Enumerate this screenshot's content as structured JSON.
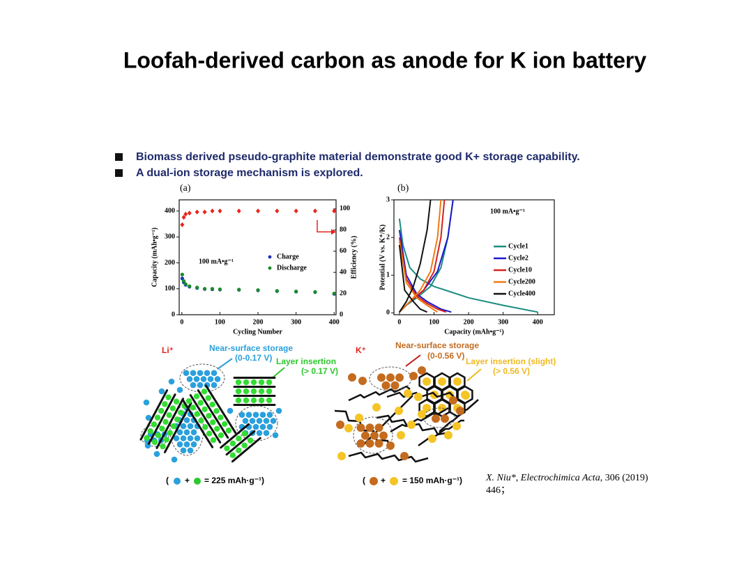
{
  "title": "Loofah-derived carbon as anode for K ion battery",
  "bullets": [
    "Biomass derived pseudo-graphite material demonstrate good K+ storage capability.",
    "A dual-ion storage mechanism is explored."
  ],
  "figure_a": {
    "type": "scatter",
    "panel": "(a)",
    "xlabel": "Cycling Number",
    "ylabel": "Capacity (mAh•g⁻¹)",
    "y2label": "Efficiency (%)",
    "annotation": "100 mA•g⁻¹",
    "xlim": [
      -7,
      405
    ],
    "xticks": [
      0,
      100,
      200,
      300,
      400
    ],
    "ylim": [
      0,
      443
    ],
    "yticks": [
      0,
      100,
      200,
      300,
      400
    ],
    "y2lim": [
      0,
      108.5
    ],
    "y2ticks": [
      0,
      20,
      40,
      60,
      80,
      100
    ],
    "series": [
      {
        "name": "Charge",
        "color": "#1f2fbf",
        "marker": "circle",
        "x": [
          1,
          5,
          10,
          20,
          40,
          60,
          80,
          100,
          150,
          200,
          250,
          300,
          350,
          400
        ],
        "values": [
          140,
          125,
          115,
          108,
          103,
          99,
          98,
          97,
          96,
          94,
          91,
          89,
          87,
          80
        ]
      },
      {
        "name": "Discharge",
        "color": "#1a8a2a",
        "marker": "circle",
        "x": [
          1,
          5,
          10,
          20,
          40,
          60,
          80,
          100,
          150,
          200,
          250,
          300,
          350,
          400
        ],
        "values": [
          155,
          130,
          118,
          110,
          105,
          100,
          100,
          98,
          97,
          95,
          92,
          90,
          88,
          82
        ]
      },
      {
        "color": "#e8231c",
        "marker": "diamond",
        "axis": "y2",
        "x": [
          1,
          5,
          10,
          20,
          40,
          60,
          80,
          100,
          150,
          200,
          250,
          300,
          350,
          400
        ],
        "values": [
          85,
          92,
          95,
          96,
          97,
          97,
          98,
          98,
          98,
          98,
          98,
          98,
          98,
          98
        ]
      }
    ]
  },
  "figure_b": {
    "type": "line",
    "panel": "(b)",
    "xlabel": "Capacity (mAh•g⁻¹)",
    "ylabel": "Potential (V vs. K⁺/K)",
    "annotation": "100 mA•g⁻¹",
    "xlim": [
      -16,
      448
    ],
    "xticks": [
      0,
      100,
      200,
      300,
      400
    ],
    "ylim": [
      -0.05,
      3
    ],
    "yticks": [
      0,
      1,
      2,
      3
    ],
    "series": [
      {
        "name": "Cycle1",
        "color": "#1a8c80",
        "x": [
          0,
          10,
          30,
          60,
          100,
          150,
          200,
          300,
          400,
          null,
          0,
          20,
          50,
          90,
          120,
          140,
          155
        ],
        "values": [
          2.5,
          1.8,
          1.2,
          0.9,
          0.7,
          0.55,
          0.4,
          0.2,
          0.02,
          null,
          0.02,
          0.2,
          0.4,
          0.7,
          1.2,
          2.0,
          3.0
        ]
      },
      {
        "name": "Cycle2",
        "color": "#1a1acc",
        "x": [
          0,
          20,
          50,
          80,
          120,
          150,
          null,
          0,
          30,
          70,
          110,
          140,
          155
        ],
        "values": [
          2.2,
          1.0,
          0.5,
          0.3,
          0.1,
          0.02,
          null,
          0.02,
          0.3,
          0.6,
          1.1,
          2.0,
          3.0
        ]
      },
      {
        "name": "Cycle10",
        "color": "#d42020",
        "x": [
          0,
          20,
          50,
          80,
          110,
          135,
          null,
          0,
          30,
          70,
          100,
          120,
          130
        ],
        "values": [
          2.0,
          0.9,
          0.45,
          0.25,
          0.1,
          0.02,
          null,
          0.02,
          0.3,
          0.6,
          1.1,
          2.0,
          3.0
        ]
      },
      {
        "name": "Cycle200",
        "color": "#f07a10",
        "x": [
          0,
          20,
          50,
          80,
          110,
          null,
          0,
          30,
          60,
          90,
          110,
          120
        ],
        "values": [
          1.9,
          0.8,
          0.4,
          0.2,
          0.02,
          null,
          0.02,
          0.3,
          0.6,
          1.1,
          2.0,
          3.0
        ]
      },
      {
        "name": "Cycle400",
        "color": "#111111",
        "x": [
          0,
          15,
          40,
          60,
          80,
          null,
          0,
          20,
          40,
          60,
          80,
          90
        ],
        "values": [
          1.8,
          0.6,
          0.3,
          0.1,
          0.02,
          null,
          0.02,
          0.3,
          0.7,
          1.3,
          2.2,
          3.0
        ]
      }
    ]
  },
  "li_scheme": {
    "ion": "Li⁺",
    "surface_label": "Near-surface storage",
    "surface_range": "(0-0.17 V)",
    "layer_label": "Layer insertion",
    "layer_range": "(> 0.17 V)",
    "formula": [
      "(",
      "+",
      "= 225 mAh·g⁻¹)"
    ]
  },
  "k_scheme": {
    "ion": "K⁺",
    "surface_label": "Near-surface storage",
    "surface_range": "(0-0.56 V)",
    "layer_label": "Layer insertion (slight)",
    "layer_range": "(> 0.56 V)",
    "formula": [
      "(",
      "+",
      "= 150 mAh·g⁻¹)"
    ]
  },
  "reference": {
    "author": "X. Niu*, ",
    "journal": "Electrochimica Acta",
    "volume": ", 306 (2019)",
    "pages": "446；"
  }
}
